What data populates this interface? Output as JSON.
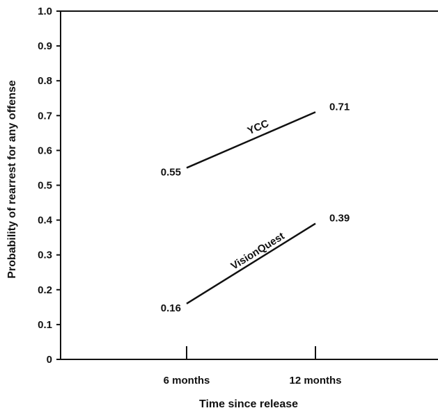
{
  "chart_data": {
    "type": "line",
    "title": "",
    "xlabel": "Time since release",
    "ylabel": "Probability of rearrest for any offense",
    "categories": [
      "6 months",
      "12 months"
    ],
    "ylim": [
      0,
      1.0
    ],
    "yticks": [
      "0",
      "0.1",
      "0.2",
      "0.3",
      "0.4",
      "0.5",
      "0.6",
      "0.7",
      "0.8",
      "0.9",
      "1.0"
    ],
    "grid": false,
    "series": [
      {
        "name": "YCC",
        "values": [
          0.55,
          0.71
        ],
        "labels": [
          "0.55",
          "0.71"
        ]
      },
      {
        "name": "VisionQuest",
        "values": [
          0.16,
          0.39
        ],
        "labels": [
          "0.16",
          "0.39"
        ]
      }
    ]
  }
}
